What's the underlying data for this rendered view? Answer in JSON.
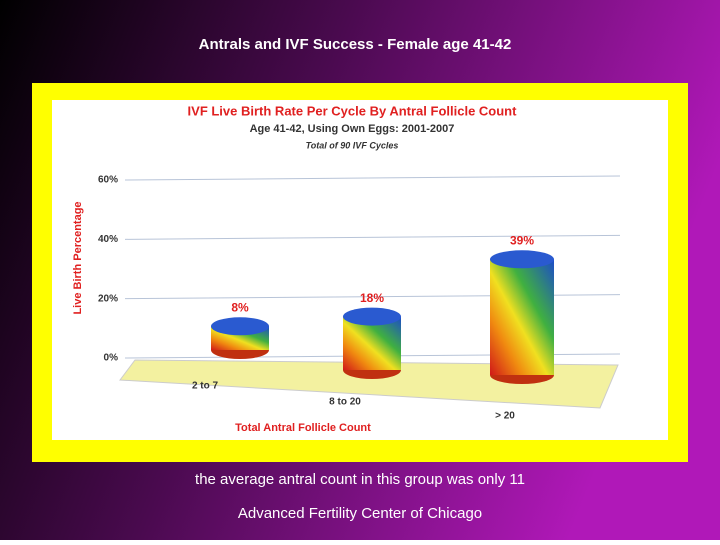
{
  "slide": {
    "title": "Antrals and IVF Success - Female age 41-42",
    "caption": "the average antral count in this group was only 11",
    "footer": "Advanced Fertility Center of Chicago"
  },
  "chart_data": {
    "type": "bar",
    "title": "IVF Live Birth Rate Per Cycle By Antral Follicle Count",
    "subtitles": [
      "Age 41-42, Using Own Eggs: 2001-2007",
      "Total of 90 IVF Cycles"
    ],
    "ylabel": "Live Birth Percentage",
    "xlabel": "Total Antral Follicle Count",
    "categories": [
      "2 to 7",
      "8 to 20",
      "> 20"
    ],
    "values": [
      8,
      18,
      39
    ],
    "value_labels": [
      "8%",
      "18%",
      "39%"
    ],
    "ylim": [
      0,
      60
    ],
    "yticks": [
      {
        "value": 0,
        "label": "0%"
      },
      {
        "value": 20,
        "label": "20%"
      },
      {
        "value": 40,
        "label": "40%"
      },
      {
        "value": 60,
        "label": "60%"
      }
    ],
    "grid": true
  }
}
